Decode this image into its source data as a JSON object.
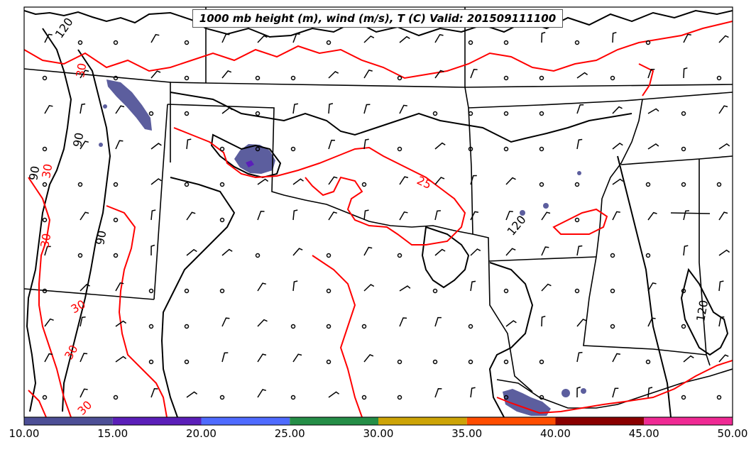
{
  "title": "1000 mb height (m), wind (m/s), T (C) Valid: 201509111100",
  "contour_labels": {
    "height": [
      "120",
      "90",
      "90",
      "90",
      "120",
      "120"
    ],
    "temperature": [
      "30",
      "30",
      "25",
      "30",
      "30",
      "30",
      "30"
    ]
  },
  "colorbar": {
    "ticks": [
      "10.00",
      "15.00",
      "20.00",
      "25.00",
      "30.00",
      "35.00",
      "40.00",
      "45.00",
      "50.00"
    ],
    "colors": [
      "#4d4f96",
      "#5b1fb9",
      "#4f6bff",
      "#258e47",
      "#cda407",
      "#ff4d00",
      "#8a0000",
      "#ef2a94"
    ]
  },
  "styles": {
    "height_contour_color": "#000000",
    "temperature_contour_color": "#ff0000",
    "state_border_color": "#000000",
    "wind_shading_color": "#5c5e9e",
    "background": "#ffffff"
  }
}
